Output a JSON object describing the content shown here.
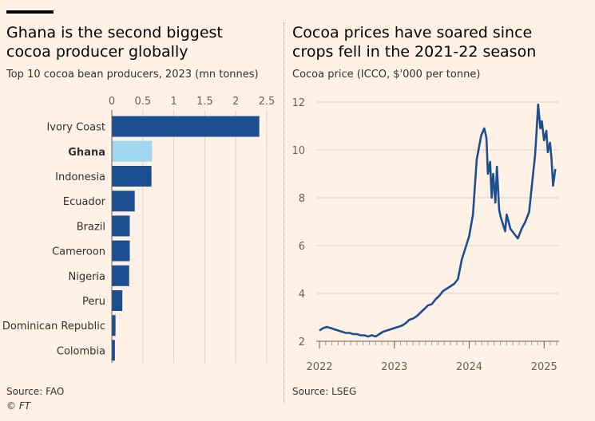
{
  "left": {
    "title_line1": "Ghana is the second biggest",
    "title_line2": "cocoa producer globally",
    "subtitle": "Top 10 cocoa bean producers, 2023 (mn tonnes)",
    "source": "Source: FAO",
    "credit": "© FT"
  },
  "right": {
    "title_line1": "Cocoa prices have soared since",
    "title_line2": "crops fell in the 2021-22 season",
    "subtitle": "Cocoa price (ICCO, $'000 per tonne)",
    "source": "Source: LSEG"
  },
  "colors": {
    "bar": "#1b4f8f",
    "highlight": "#9fd6f0",
    "line": "#1b4f8f",
    "grid": "#ddd0c3"
  },
  "chart_data": [
    {
      "type": "bar",
      "orientation": "horizontal",
      "title": "Ghana is the second biggest cocoa producer globally",
      "subtitle": "Top 10 cocoa bean producers, 2023 (mn tonnes)",
      "categories": [
        "Ivory Coast",
        "Ghana",
        "Indonesia",
        "Ecuador",
        "Brazil",
        "Cameroon",
        "Nigeria",
        "Peru",
        "Dominican Republic",
        "Colombia"
      ],
      "values": [
        2.38,
        0.65,
        0.64,
        0.37,
        0.29,
        0.29,
        0.28,
        0.17,
        0.06,
        0.05
      ],
      "highlight": "Ghana",
      "xlim": [
        0,
        2.5
      ],
      "xticks": [
        0,
        0.5,
        1,
        1.5,
        2,
        2.5
      ],
      "xtick_labels": [
        "0",
        "0.5",
        "1",
        "1.5",
        "2",
        "2.5"
      ]
    },
    {
      "type": "line",
      "title": "Cocoa prices have soared since crops fell in the 2021-22 season",
      "subtitle": "Cocoa price (ICCO, $'000 per tonne)",
      "ylim": [
        2,
        12
      ],
      "yticks": [
        2,
        4,
        6,
        8,
        10,
        12
      ],
      "xlim": [
        2022.0,
        2025.2
      ],
      "xticks": [
        2022,
        2023,
        2024,
        2025
      ],
      "x": [
        2022.0,
        2022.05,
        2022.1,
        2022.15,
        2022.2,
        2022.25,
        2022.3,
        2022.35,
        2022.4,
        2022.45,
        2022.5,
        2022.55,
        2022.6,
        2022.65,
        2022.7,
        2022.75,
        2022.8,
        2022.85,
        2022.9,
        2022.95,
        2023.0,
        2023.05,
        2023.1,
        2023.15,
        2023.2,
        2023.25,
        2023.3,
        2023.35,
        2023.4,
        2023.45,
        2023.5,
        2023.55,
        2023.6,
        2023.65,
        2023.7,
        2023.75,
        2023.8,
        2023.85,
        2023.9,
        2023.95,
        2024.0,
        2024.05,
        2024.1,
        2024.13,
        2024.16,
        2024.2,
        2024.23,
        2024.25,
        2024.28,
        2024.3,
        2024.32,
        2024.35,
        2024.37,
        2024.4,
        2024.42,
        2024.45,
        2024.48,
        2024.5,
        2024.55,
        2024.6,
        2024.65,
        2024.7,
        2024.75,
        2024.8,
        2024.85,
        2024.88,
        2024.9,
        2024.92,
        2024.95,
        2024.97,
        2025.0,
        2025.03,
        2025.05,
        2025.08,
        2025.1,
        2025.12,
        2025.15
      ],
      "y": [
        2.45,
        2.55,
        2.6,
        2.55,
        2.5,
        2.45,
        2.4,
        2.35,
        2.35,
        2.3,
        2.3,
        2.25,
        2.25,
        2.2,
        2.25,
        2.2,
        2.3,
        2.4,
        2.45,
        2.5,
        2.55,
        2.6,
        2.65,
        2.75,
        2.9,
        2.95,
        3.05,
        3.2,
        3.35,
        3.5,
        3.55,
        3.75,
        3.9,
        4.1,
        4.2,
        4.3,
        4.4,
        4.6,
        5.4,
        5.9,
        6.4,
        7.3,
        9.6,
        10.1,
        10.6,
        10.9,
        10.5,
        9.0,
        9.5,
        8.0,
        9.0,
        7.8,
        9.3,
        7.5,
        7.2,
        6.9,
        6.6,
        7.3,
        6.7,
        6.5,
        6.3,
        6.7,
        7.0,
        7.4,
        8.9,
        9.8,
        10.8,
        11.9,
        10.9,
        11.2,
        10.4,
        10.8,
        9.9,
        10.3,
        9.6,
        8.5,
        9.2
      ]
    }
  ]
}
